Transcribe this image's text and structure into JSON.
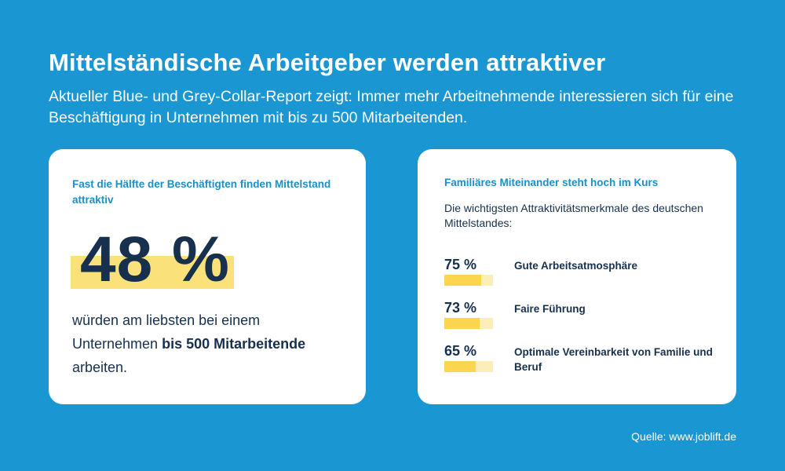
{
  "header": {
    "title": "Mittelständische Arbeitgeber werden attraktiver",
    "subtitle": "Aktueller Blue- und Grey-Collar-Report zeigt: Immer mehr Arbeitnehmende interessieren sich für eine Beschäftigung in Unternehmen mit bis zu 500 Mitarbeitenden."
  },
  "left_card": {
    "heading": "Fast die Hälfte der Beschäftigten finden Mittelstand attraktiv",
    "big_value": "48 %",
    "text_line1": "würden am liebsten bei einem",
    "text_line2_plain": "Unternehmen ",
    "text_line2_bold": "bis 500 Mitarbeitende",
    "text_line3": "arbeiten."
  },
  "right_card": {
    "heading": "Familiäres Miteinander steht hoch im Kurs",
    "intro": "Die wichtigsten Attraktivitätsmerkmale des deutschen Mittelstandes:"
  },
  "chart_data": {
    "type": "bar",
    "title": "Familiäres Miteinander steht hoch im Kurs",
    "ylim": [
      0,
      100
    ],
    "categories": [
      "Gute Arbeitsatmosphäre",
      "Faire Führung",
      "Optimale Vereinbarkeit von Familie und Beruf"
    ],
    "values": [
      75,
      73,
      65
    ],
    "labels": [
      "75 %",
      "73 %",
      "65 %"
    ]
  },
  "footer": {
    "source": "Quelle: www.joblift.de"
  },
  "colors": {
    "background": "#1a96d3",
    "card": "#ffffff",
    "accent_text": "#1a8fc9",
    "dark_text": "#16304d",
    "bar_fill": "#fcd64e",
    "bar_track": "#fbeeb8",
    "highlight": "#fbe17a"
  }
}
